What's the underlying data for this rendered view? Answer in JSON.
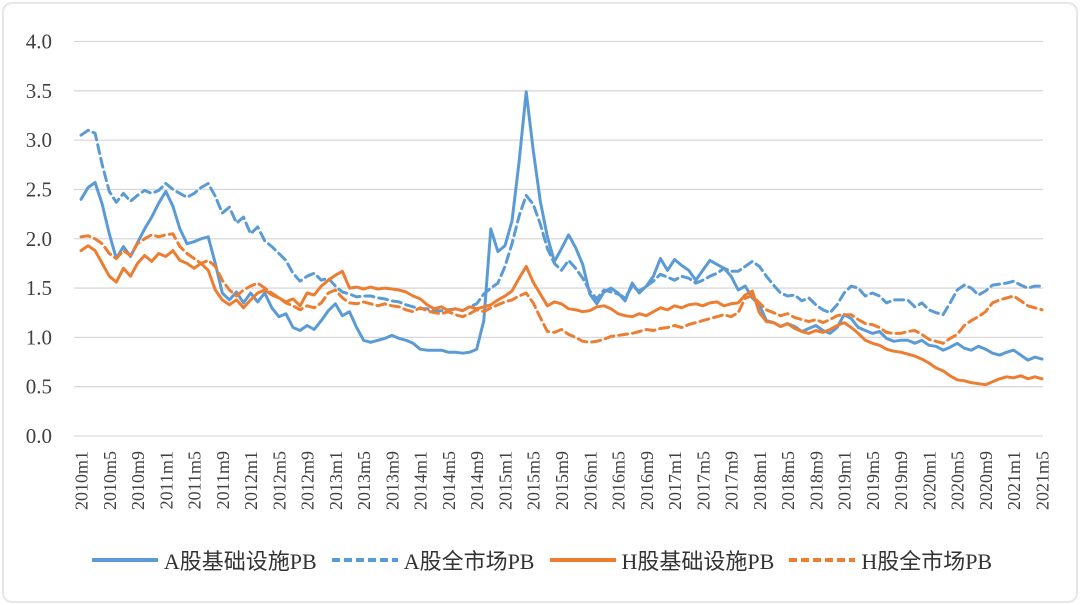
{
  "page": {
    "background": "#FFFFFF",
    "border_color": "#E7E7E7",
    "text_color": "#404040"
  },
  "chart_data": {
    "type": "line",
    "title": "",
    "grid": "horizontal",
    "grid_color": "#D9D9D9",
    "legend_position": "bottom",
    "x_axis": {
      "n_points": 137,
      "start": "2010m1",
      "end": "2021m5",
      "tick_interval_months": 4,
      "tick_labels": [
        "2010m1",
        "2010m5",
        "2010m9",
        "2011m1",
        "2011m5",
        "2011m9",
        "2012m1",
        "2012m5",
        "2012m9",
        "2013m1",
        "2013m5",
        "2013m9",
        "2014m1",
        "2014m5",
        "2014m9",
        "2015m1",
        "2015m5",
        "2015m9",
        "2016m1",
        "2016m5",
        "2016m9",
        "2017m1",
        "2017m5",
        "2017m9",
        "2018m1",
        "2018m5",
        "2018m9",
        "2019m1",
        "2019m5",
        "2019m9",
        "2020m1",
        "2020m5",
        "2020m9",
        "2021m1",
        "2021m5"
      ]
    },
    "y_axis": {
      "min": 0.0,
      "max": 4.0,
      "tick_step": 0.5,
      "tick_labels": [
        "0.0",
        "0.5",
        "1.0",
        "1.5",
        "2.0",
        "2.5",
        "3.0",
        "3.5",
        "4.0"
      ]
    },
    "series": [
      {
        "name": "A股基础设施PB",
        "color": "#5B9BD5",
        "style": "solid",
        "values": [
          2.4,
          2.52,
          2.57,
          2.35,
          2.05,
          1.8,
          1.92,
          1.82,
          1.96,
          2.1,
          2.22,
          2.36,
          2.48,
          2.33,
          2.1,
          1.95,
          1.97,
          2.0,
          2.02,
          1.75,
          1.45,
          1.38,
          1.46,
          1.35,
          1.45,
          1.36,
          1.45,
          1.3,
          1.21,
          1.24,
          1.1,
          1.07,
          1.12,
          1.08,
          1.17,
          1.27,
          1.34,
          1.22,
          1.26,
          1.1,
          0.97,
          0.95,
          0.97,
          0.99,
          1.02,
          0.99,
          0.97,
          0.94,
          0.88,
          0.87,
          0.87,
          0.87,
          0.85,
          0.85,
          0.84,
          0.85,
          0.88,
          1.17,
          2.1,
          1.87,
          1.93,
          2.18,
          2.78,
          3.49,
          2.9,
          2.38,
          2.02,
          1.77,
          1.9,
          2.04,
          1.91,
          1.74,
          1.44,
          1.34,
          1.46,
          1.5,
          1.45,
          1.37,
          1.55,
          1.45,
          1.52,
          1.62,
          1.8,
          1.68,
          1.79,
          1.73,
          1.68,
          1.58,
          1.68,
          1.78,
          1.74,
          1.7,
          1.62,
          1.48,
          1.52,
          1.4,
          1.33,
          1.17,
          1.15,
          1.11,
          1.14,
          1.11,
          1.06,
          1.09,
          1.12,
          1.07,
          1.04,
          1.1,
          1.23,
          1.19,
          1.1,
          1.07,
          1.04,
          1.06,
          0.99,
          0.96,
          0.97,
          0.97,
          0.94,
          0.97,
          0.92,
          0.91,
          0.87,
          0.9,
          0.94,
          0.89,
          0.87,
          0.91,
          0.88,
          0.84,
          0.82,
          0.85,
          0.87,
          0.82,
          0.77,
          0.8,
          0.78
        ]
      },
      {
        "name": "A股全市场PB",
        "color": "#5B9BD5",
        "style": "dashed",
        "values": [
          3.05,
          3.1,
          3.07,
          2.75,
          2.48,
          2.37,
          2.46,
          2.38,
          2.44,
          2.49,
          2.46,
          2.49,
          2.56,
          2.5,
          2.46,
          2.42,
          2.46,
          2.52,
          2.56,
          2.43,
          2.26,
          2.32,
          2.16,
          2.22,
          2.05,
          2.12,
          1.98,
          1.92,
          1.85,
          1.78,
          1.65,
          1.57,
          1.62,
          1.65,
          1.58,
          1.6,
          1.52,
          1.46,
          1.44,
          1.41,
          1.42,
          1.42,
          1.4,
          1.39,
          1.37,
          1.36,
          1.33,
          1.31,
          1.29,
          1.29,
          1.27,
          1.27,
          1.28,
          1.29,
          1.27,
          1.31,
          1.34,
          1.44,
          1.5,
          1.55,
          1.72,
          1.95,
          2.23,
          2.44,
          2.35,
          2.15,
          1.9,
          1.75,
          1.68,
          1.78,
          1.7,
          1.6,
          1.47,
          1.39,
          1.48,
          1.46,
          1.44,
          1.4,
          1.52,
          1.47,
          1.52,
          1.57,
          1.64,
          1.61,
          1.58,
          1.62,
          1.6,
          1.55,
          1.58,
          1.62,
          1.65,
          1.7,
          1.67,
          1.67,
          1.72,
          1.77,
          1.72,
          1.62,
          1.53,
          1.45,
          1.42,
          1.43,
          1.37,
          1.4,
          1.33,
          1.28,
          1.25,
          1.33,
          1.45,
          1.52,
          1.5,
          1.42,
          1.45,
          1.42,
          1.35,
          1.38,
          1.38,
          1.38,
          1.31,
          1.35,
          1.28,
          1.25,
          1.23,
          1.35,
          1.48,
          1.53,
          1.5,
          1.43,
          1.47,
          1.53,
          1.54,
          1.55,
          1.57,
          1.53,
          1.5,
          1.52,
          1.52
        ]
      },
      {
        "name": "H股基础设施PB",
        "color": "#ED7D31",
        "style": "solid",
        "values": [
          1.88,
          1.93,
          1.88,
          1.75,
          1.62,
          1.56,
          1.7,
          1.62,
          1.75,
          1.83,
          1.77,
          1.85,
          1.82,
          1.88,
          1.78,
          1.75,
          1.7,
          1.75,
          1.68,
          1.48,
          1.38,
          1.33,
          1.38,
          1.3,
          1.38,
          1.45,
          1.48,
          1.43,
          1.4,
          1.36,
          1.39,
          1.32,
          1.45,
          1.43,
          1.52,
          1.58,
          1.63,
          1.67,
          1.5,
          1.51,
          1.49,
          1.51,
          1.49,
          1.5,
          1.49,
          1.48,
          1.46,
          1.42,
          1.39,
          1.33,
          1.29,
          1.31,
          1.27,
          1.29,
          1.27,
          1.31,
          1.29,
          1.31,
          1.33,
          1.38,
          1.42,
          1.47,
          1.6,
          1.72,
          1.56,
          1.44,
          1.32,
          1.36,
          1.34,
          1.29,
          1.28,
          1.26,
          1.27,
          1.31,
          1.32,
          1.29,
          1.24,
          1.22,
          1.21,
          1.24,
          1.22,
          1.26,
          1.3,
          1.28,
          1.32,
          1.3,
          1.33,
          1.34,
          1.32,
          1.35,
          1.36,
          1.32,
          1.34,
          1.35,
          1.43,
          1.47,
          1.25,
          1.16,
          1.15,
          1.11,
          1.14,
          1.09,
          1.06,
          1.04,
          1.07,
          1.05,
          1.08,
          1.12,
          1.15,
          1.1,
          1.04,
          0.97,
          0.94,
          0.92,
          0.88,
          0.86,
          0.85,
          0.83,
          0.81,
          0.78,
          0.74,
          0.69,
          0.66,
          0.61,
          0.57,
          0.56,
          0.54,
          0.53,
          0.52,
          0.55,
          0.58,
          0.6,
          0.59,
          0.61,
          0.58,
          0.6,
          0.58
        ]
      },
      {
        "name": "H股全市场PB",
        "color": "#ED7D31",
        "style": "dashed",
        "values": [
          2.02,
          2.03,
          2.0,
          1.95,
          1.85,
          1.8,
          1.88,
          1.83,
          1.95,
          2.0,
          2.04,
          2.02,
          2.04,
          2.05,
          1.92,
          1.85,
          1.8,
          1.75,
          1.78,
          1.72,
          1.58,
          1.48,
          1.42,
          1.48,
          1.52,
          1.55,
          1.5,
          1.45,
          1.4,
          1.35,
          1.32,
          1.28,
          1.32,
          1.3,
          1.35,
          1.45,
          1.48,
          1.4,
          1.35,
          1.34,
          1.36,
          1.34,
          1.32,
          1.34,
          1.32,
          1.31,
          1.28,
          1.26,
          1.3,
          1.27,
          1.25,
          1.24,
          1.26,
          1.23,
          1.21,
          1.24,
          1.28,
          1.26,
          1.3,
          1.33,
          1.36,
          1.38,
          1.42,
          1.45,
          1.35,
          1.2,
          1.06,
          1.05,
          1.08,
          1.03,
          1.0,
          0.96,
          0.95,
          0.96,
          0.98,
          1.01,
          1.02,
          1.03,
          1.04,
          1.06,
          1.08,
          1.07,
          1.09,
          1.1,
          1.12,
          1.1,
          1.13,
          1.15,
          1.17,
          1.19,
          1.21,
          1.23,
          1.21,
          1.25,
          1.4,
          1.42,
          1.35,
          1.28,
          1.25,
          1.22,
          1.24,
          1.2,
          1.18,
          1.16,
          1.18,
          1.15,
          1.18,
          1.22,
          1.23,
          1.23,
          1.18,
          1.14,
          1.13,
          1.1,
          1.05,
          1.04,
          1.04,
          1.06,
          1.07,
          1.03,
          0.98,
          0.96,
          0.94,
          0.99,
          1.03,
          1.12,
          1.17,
          1.21,
          1.26,
          1.35,
          1.38,
          1.4,
          1.42,
          1.37,
          1.32,
          1.3,
          1.28
        ]
      }
    ]
  }
}
